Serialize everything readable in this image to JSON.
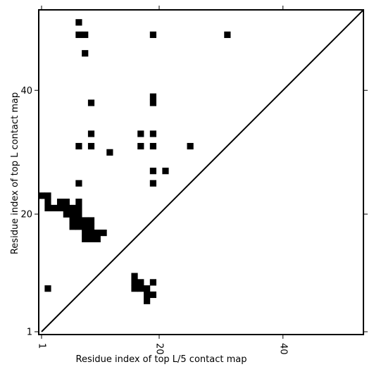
{
  "chart_data": {
    "type": "heatmap",
    "title": "",
    "xlabel": "Residue index of top L/5 contact map",
    "ylabel": "Residue index of top L contact map",
    "xlim": [
      1,
      53
    ],
    "ylim": [
      1,
      53
    ],
    "x_ticks": [
      1,
      20,
      40
    ],
    "y_ticks": [
      1,
      20,
      40
    ],
    "x_tick_labels": [
      "1",
      "20",
      "40"
    ],
    "y_tick_labels": [
      "1",
      "20",
      "40"
    ],
    "x_tick_rotation": 90,
    "diagonal": {
      "from": [
        1,
        1
      ],
      "to": [
        53,
        53
      ]
    },
    "cell_color": "#000000",
    "line_color": "#000000",
    "background": "#ffffff",
    "cells": [
      [
        7,
        51
      ],
      [
        7,
        49
      ],
      [
        8,
        49
      ],
      [
        8,
        46
      ],
      [
        19,
        49
      ],
      [
        31,
        49
      ],
      [
        9,
        38
      ],
      [
        19,
        39
      ],
      [
        19,
        38
      ],
      [
        9,
        33
      ],
      [
        17,
        33
      ],
      [
        19,
        33
      ],
      [
        7,
        31
      ],
      [
        9,
        31
      ],
      [
        17,
        31
      ],
      [
        19,
        31
      ],
      [
        25,
        31
      ],
      [
        12,
        30
      ],
      [
        19,
        27
      ],
      [
        21,
        27
      ],
      [
        7,
        25
      ],
      [
        19,
        25
      ],
      [
        1,
        23
      ],
      [
        2,
        23
      ],
      [
        2,
        22
      ],
      [
        4,
        22
      ],
      [
        5,
        22
      ],
      [
        7,
        22
      ],
      [
        2,
        21
      ],
      [
        3,
        21
      ],
      [
        4,
        21
      ],
      [
        5,
        21
      ],
      [
        6,
        21
      ],
      [
        7,
        21
      ],
      [
        5,
        20
      ],
      [
        6,
        20
      ],
      [
        7,
        20
      ],
      [
        6,
        19
      ],
      [
        7,
        19
      ],
      [
        8,
        19
      ],
      [
        9,
        19
      ],
      [
        6,
        18
      ],
      [
        7,
        18
      ],
      [
        8,
        18
      ],
      [
        9,
        18
      ],
      [
        8,
        17
      ],
      [
        9,
        17
      ],
      [
        10,
        17
      ],
      [
        11,
        17
      ],
      [
        8,
        16
      ],
      [
        9,
        16
      ],
      [
        10,
        16
      ],
      [
        16,
        10
      ],
      [
        16,
        9
      ],
      [
        17,
        9
      ],
      [
        19,
        9
      ],
      [
        16,
        8
      ],
      [
        17,
        8
      ],
      [
        18,
        8
      ],
      [
        2,
        8
      ],
      [
        18,
        7
      ],
      [
        19,
        7
      ],
      [
        18,
        6
      ]
    ]
  }
}
